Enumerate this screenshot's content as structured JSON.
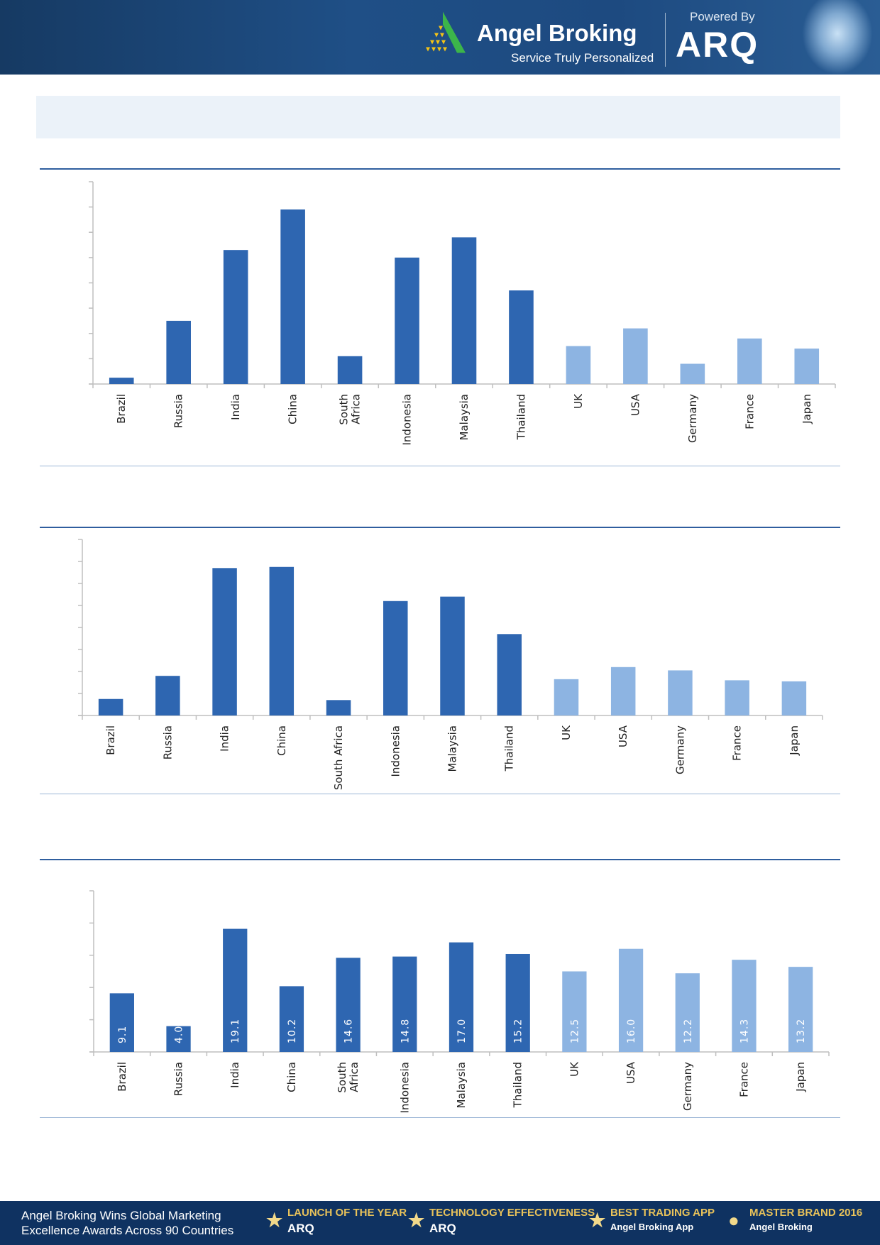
{
  "header": {
    "brand": "Angel Broking",
    "tagline": "Service Truly Personalized",
    "powered_by": "Powered By",
    "product": "ARQ"
  },
  "footer": {
    "text_line1": "Angel Broking Wins Global Marketing",
    "text_line2": "Excellence Awards Across 90 Countries",
    "awards": [
      {
        "title": "LAUNCH OF THE YEAR",
        "sub": "ARQ"
      },
      {
        "title": "TECHNOLOGY EFFECTIVENESS",
        "sub": "ARQ"
      },
      {
        "title": "BEST TRADING APP",
        "sub": "Angel Broking App"
      },
      {
        "title": "MASTER BRAND 2016",
        "sub": "Angel Broking"
      }
    ]
  },
  "colors": {
    "primary": "#2E66B1",
    "secondary": "#8DB4E2",
    "accent": "#2F5E9E"
  },
  "chart_data": [
    {
      "type": "bar",
      "title": "",
      "xlabel": "",
      "ylabel": "",
      "ylim": [
        0,
        8
      ],
      "yticks": 8,
      "grid": false,
      "data_labels": false,
      "categories": [
        "Brazil",
        "Russia",
        "India",
        "China",
        "South\nAfrica",
        "Indonesia",
        "Malaysia",
        "Thailand",
        "UK",
        "USA",
        "Germany",
        "France",
        "Japan"
      ],
      "values": [
        0.25,
        2.5,
        5.3,
        6.9,
        1.1,
        5.0,
        5.8,
        3.7,
        1.5,
        2.2,
        0.8,
        1.8,
        1.4
      ],
      "bar_colors": [
        "#2E66B1",
        "#2E66B1",
        "#2E66B1",
        "#2E66B1",
        "#2E66B1",
        "#2E66B1",
        "#2E66B1",
        "#2E66B1",
        "#8DB4E2",
        "#8DB4E2",
        "#8DB4E2",
        "#8DB4E2",
        "#8DB4E2"
      ]
    },
    {
      "type": "bar",
      "title": "",
      "xlabel": "",
      "ylabel": "",
      "ylim": [
        0,
        8
      ],
      "yticks": 8,
      "grid": false,
      "data_labels": false,
      "categories": [
        "Brazil",
        "Russia",
        "India",
        "China",
        "South Africa",
        "Indonesia",
        "Malaysia",
        "Thailand",
        "UK",
        "USA",
        "Germany",
        "France",
        "Japan"
      ],
      "values": [
        0.75,
        1.8,
        6.7,
        6.75,
        0.7,
        5.2,
        5.4,
        3.7,
        1.65,
        2.2,
        2.05,
        1.6,
        1.55
      ],
      "bar_colors": [
        "#2E66B1",
        "#2E66B1",
        "#2E66B1",
        "#2E66B1",
        "#2E66B1",
        "#2E66B1",
        "#2E66B1",
        "#2E66B1",
        "#8DB4E2",
        "#8DB4E2",
        "#8DB4E2",
        "#8DB4E2",
        "#8DB4E2"
      ]
    },
    {
      "type": "bar",
      "title": "",
      "xlabel": "",
      "ylabel": "",
      "ylim": [
        0,
        25
      ],
      "yticks": 5,
      "grid": false,
      "data_labels": true,
      "categories": [
        "Brazil",
        "Russia",
        "India",
        "China",
        "South\nAfrica",
        "Indonesia",
        "Malaysia",
        "Thailand",
        "UK",
        "USA",
        "Germany",
        "France",
        "Japan"
      ],
      "values": [
        9.1,
        4.0,
        19.1,
        10.2,
        14.6,
        14.8,
        17.0,
        15.2,
        12.5,
        16.0,
        12.2,
        14.3,
        13.2
      ],
      "value_labels": [
        "9.1",
        "4.0",
        "19.1",
        "10.2",
        "14.6",
        "14.8",
        "17.0",
        "15.2",
        "12.5",
        "16.0",
        "12.2",
        "14.3",
        "13.2"
      ],
      "bar_colors": [
        "#2E66B1",
        "#2E66B1",
        "#2E66B1",
        "#2E66B1",
        "#2E66B1",
        "#2E66B1",
        "#2E66B1",
        "#2E66B1",
        "#8DB4E2",
        "#8DB4E2",
        "#8DB4E2",
        "#8DB4E2",
        "#8DB4E2"
      ]
    }
  ]
}
